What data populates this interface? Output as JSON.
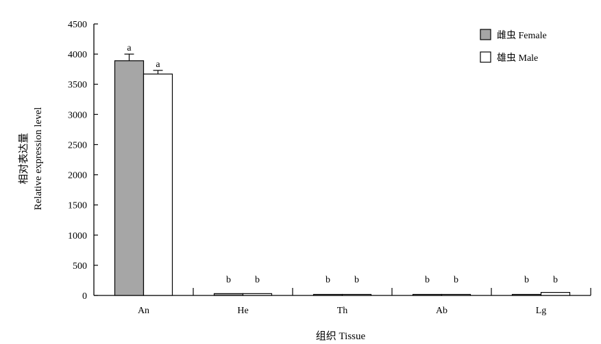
{
  "chart_data": {
    "type": "bar",
    "categories": [
      "An",
      "He",
      "Th",
      "Ab",
      "Lg"
    ],
    "series": [
      {
        "name": "雌虫 Female",
        "values": [
          3890,
          30,
          5,
          5,
          5
        ],
        "errors": [
          110,
          0,
          0,
          0,
          0
        ],
        "labels": [
          "a",
          "b",
          "b",
          "b",
          "b"
        ],
        "color": "#a6a6a6"
      },
      {
        "name": "雄虫 Male",
        "values": [
          3670,
          30,
          5,
          5,
          50
        ],
        "errors": [
          60,
          0,
          0,
          0,
          0
        ],
        "labels": [
          "a",
          "b",
          "b",
          "b",
          "b"
        ],
        "color": "#ffffff"
      }
    ],
    "xlabel": "组织 Tissue",
    "ylabel_cn": "相对表达量",
    "ylabel_en": "Relative expression level",
    "ylim": [
      0,
      4500
    ],
    "yticks": [
      0,
      500,
      1000,
      1500,
      2000,
      2500,
      3000,
      3500,
      4000,
      4500
    ],
    "grid": false,
    "legend_position": "top-right"
  }
}
